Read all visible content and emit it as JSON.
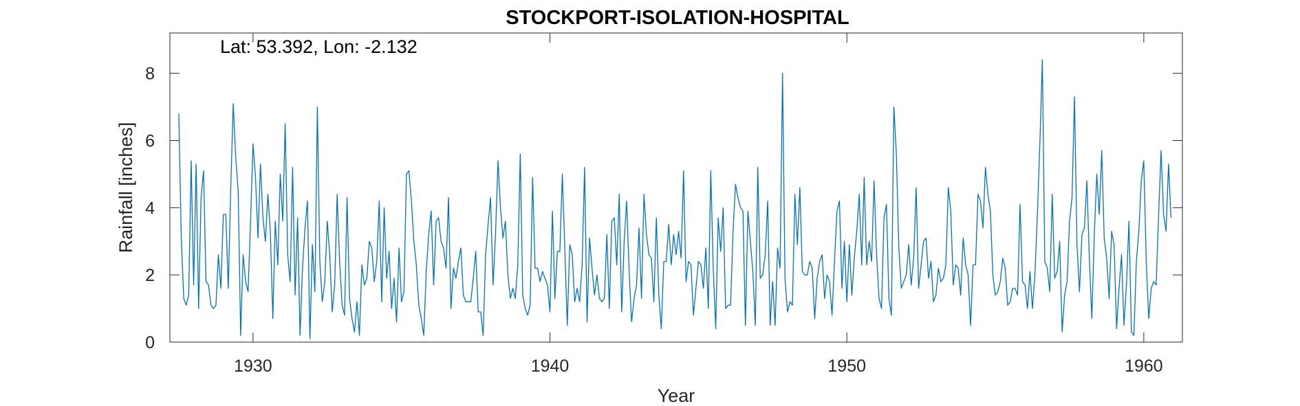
{
  "chart_data": {
    "type": "line",
    "title": "STOCKPORT-ISOLATION-HOSPITAL",
    "xlabel": "Year",
    "ylabel": "Rainfall [inches]",
    "annotation": "Lat: 53.392, Lon: -2.132",
    "xlim": [
      1927.2,
      1961.3
    ],
    "ylim": [
      0,
      9.2
    ],
    "xticks": [
      1930,
      1940,
      1950,
      1960
    ],
    "xtick_labels": [
      "1930",
      "1940",
      "1950",
      "1960"
    ],
    "yticks": [
      0,
      2,
      4,
      6,
      8
    ],
    "ytick_labels": [
      "0",
      "2",
      "4",
      "6",
      "8"
    ],
    "grid": false,
    "series_color": "#0072BD",
    "series": [
      {
        "x_start": 1927.5,
        "x_step": 0.0833333,
        "values": [
          6.8,
          3.1,
          1.3,
          1.1,
          1.4,
          5.4,
          1.7,
          5.3,
          1.0,
          4.3,
          5.1,
          1.8,
          1.7,
          1.1,
          1.0,
          1.1,
          2.6,
          1.6,
          3.8,
          3.8,
          1.6,
          4.6,
          7.1,
          5.5,
          4.5,
          0.2,
          2.6,
          1.8,
          1.5,
          3.6,
          5.9,
          4.9,
          3.1,
          5.3,
          3.7,
          3.0,
          4.4,
          3.3,
          0.7,
          3.6,
          2.3,
          5.0,
          3.6,
          6.5,
          2.6,
          1.8,
          5.2,
          1.4,
          3.7,
          0.2,
          2.2,
          3.4,
          4.2,
          0.1,
          2.9,
          1.5,
          7.0,
          2.4,
          1.2,
          1.8,
          3.6,
          2.6,
          0.9,
          1.7,
          4.4,
          2.4,
          1.1,
          0.8,
          4.3,
          1.3,
          0.7,
          0.3,
          1.2,
          0.2,
          2.3,
          1.7,
          1.9,
          3.0,
          2.8,
          1.8,
          2.4,
          4.2,
          1.2,
          4.0,
          1.9,
          2.7,
          1.0,
          1.9,
          0.6,
          2.8,
          1.2,
          1.5,
          5.0,
          5.1,
          4.2,
          3.0,
          2.3,
          1.1,
          0.7,
          0.2,
          2.1,
          3.2,
          3.9,
          1.7,
          3.6,
          3.7,
          3.0,
          2.8,
          2.2,
          4.3,
          1.0,
          2.2,
          1.9,
          2.4,
          2.8,
          1.4,
          1.2,
          1.2,
          1.2,
          1.9,
          2.7,
          0.9,
          0.9,
          0.2,
          2.6,
          3.5,
          4.3,
          1.7,
          3.2,
          5.4,
          4.0,
          3.1,
          3.6,
          2.0,
          1.3,
          1.6,
          1.3,
          2.3,
          5.6,
          1.4,
          1.0,
          0.8,
          1.1,
          4.9,
          2.2,
          2.2,
          1.8,
          2.1,
          1.9,
          1.7,
          0.9,
          3.9,
          1.3,
          2.7,
          2.7,
          5.0,
          2.8,
          0.5,
          2.9,
          2.6,
          1.2,
          1.6,
          1.2,
          2.3,
          5.2,
          0.6,
          3.1,
          2.2,
          1.4,
          2.0,
          1.3,
          1.2,
          1.3,
          3.2,
          1.0,
          3.6,
          3.7,
          2.3,
          4.4,
          0.9,
          3.0,
          4.2,
          2.1,
          0.6,
          1.3,
          1.7,
          3.4,
          1.3,
          4.4,
          3.2,
          2.6,
          2.5,
          1.2,
          3.7,
          1.4,
          0.4,
          2.4,
          2.4,
          3.5,
          2.3,
          3.2,
          2.6,
          3.3,
          2.5,
          5.1,
          1.8,
          2.4,
          2.3,
          0.8,
          1.6,
          2.4,
          2.3,
          1.6,
          2.8,
          1.0,
          5.1,
          2.2,
          0.4,
          3.7,
          2.7,
          4.0,
          1.0,
          1.1,
          1.1,
          3.3,
          4.7,
          4.3,
          4.0,
          3.9,
          0.5,
          3.9,
          3.0,
          2.1,
          0.5,
          5.2,
          1.9,
          2.0,
          2.6,
          4.2,
          0.5,
          1.8,
          0.5,
          2.8,
          2.2,
          8.0,
          1.9,
          0.9,
          1.2,
          1.1,
          4.4,
          2.9,
          4.6,
          2.1,
          2.0,
          2.0,
          2.4,
          2.2,
          0.7,
          1.9,
          2.4,
          2.6,
          1.3,
          2.0,
          1.8,
          0.8,
          2.4,
          3.9,
          4.2,
          1.6,
          3.0,
          1.2,
          2.9,
          1.4,
          2.5,
          3.3,
          4.4,
          2.3,
          4.9,
          2.3,
          3.0,
          2.4,
          4.8,
          2.6,
          1.3,
          1.0,
          3.7,
          4.1,
          1.3,
          0.8,
          7.0,
          5.6,
          2.8,
          1.6,
          1.8,
          2.0,
          2.9,
          1.7,
          2.5,
          4.6,
          1.6,
          2.3,
          3.0,
          3.1,
          1.9,
          2.4,
          1.2,
          1.4,
          2.2,
          1.8,
          1.9,
          2.3,
          4.6,
          3.9,
          1.7,
          2.3,
          2.2,
          1.4,
          3.1,
          2.3,
          2.0,
          0.5,
          2.3,
          2.3,
          4.4,
          4.2,
          3.4,
          5.2,
          4.4,
          3.9,
          2.0,
          1.4,
          1.5,
          1.8,
          2.5,
          2.2,
          1.1,
          1.2,
          1.6,
          1.6,
          1.4,
          4.1,
          1.8,
          1.7,
          1.0,
          2.1,
          1.0,
          2.0,
          3.8,
          5.9,
          8.4,
          2.4,
          2.2,
          1.5,
          4.4,
          1.9,
          2.1,
          3.0,
          0.3,
          1.4,
          1.8,
          3.6,
          4.3,
          7.3,
          2.9,
          1.5,
          3.2,
          3.4,
          4.8,
          2.5,
          0.7,
          3.2,
          5.0,
          3.8,
          5.7,
          3.1,
          2.5,
          1.3,
          3.3,
          2.9,
          0.4,
          1.6,
          2.6,
          0.5,
          1.7,
          3.6,
          0.3,
          0.2,
          2.4,
          3.3,
          4.8,
          5.4,
          2.4,
          0.7,
          1.6,
          1.8,
          1.7,
          3.8,
          5.7,
          3.8,
          3.3,
          5.3,
          3.7
        ]
      }
    ]
  }
}
